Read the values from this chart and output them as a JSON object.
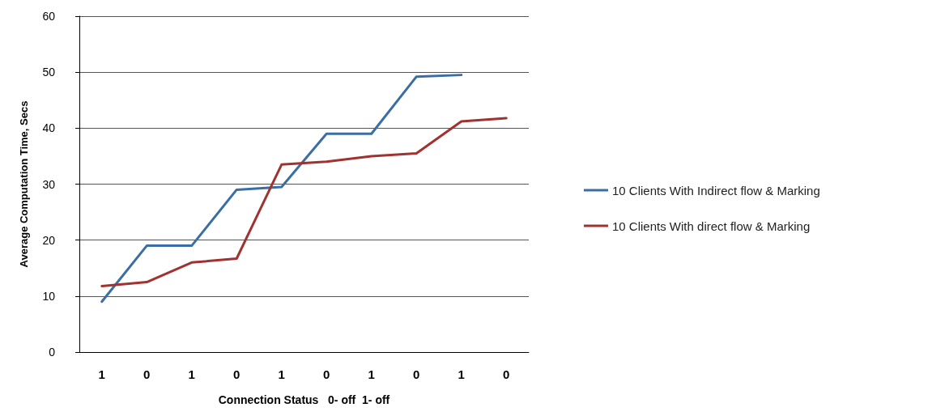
{
  "chart_data": {
    "type": "line",
    "xlabel": "Connection Status   0- off  1- off",
    "ylabel": "Average Computation Time, Secs",
    "categories": [
      "1",
      "0",
      "1",
      "0",
      "1",
      "0",
      "1",
      "0",
      "1",
      "0"
    ],
    "series": [
      {
        "name": "10 Clients With Indirect flow & Marking",
        "color": "#3b6ea5",
        "values": [
          9,
          19,
          19,
          29,
          29.5,
          39,
          39,
          49.2,
          49.5,
          null
        ]
      },
      {
        "name": "10 Clients With direct flow & Marking",
        "color": "#a0332f",
        "values": [
          11.8,
          12.5,
          16,
          16.7,
          33.5,
          34,
          35,
          35.5,
          41.2,
          41.8
        ]
      }
    ],
    "ylim": [
      0,
      60
    ],
    "yticks": [
      0,
      10,
      20,
      30,
      40,
      50,
      60
    ],
    "grid": "y",
    "legend": "right",
    "marker": "none",
    "line_style": "solid"
  }
}
